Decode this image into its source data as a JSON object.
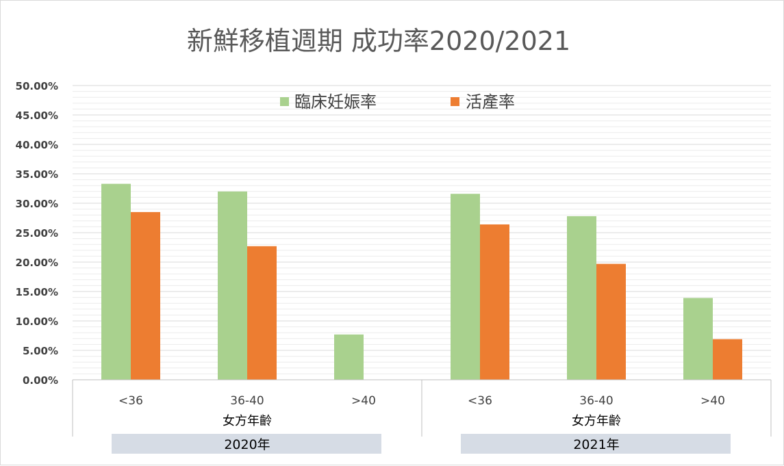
{
  "chart_data": {
    "type": "bar",
    "title": "新鮮移植週期 成功率2020/2021",
    "year_groups": [
      {
        "label": "2020年",
        "axis_label": "女方年齡",
        "categories": [
          "<36",
          "36-40",
          ">40"
        ]
      },
      {
        "label": "2021年",
        "axis_label": "女方年齡",
        "categories": [
          "<36",
          "36-40",
          ">40"
        ]
      }
    ],
    "series": [
      {
        "name": "臨床妊娠率",
        "color": "#a9d18e",
        "values": [
          33.3,
          32.0,
          7.7,
          31.6,
          27.8,
          13.9
        ]
      },
      {
        "name": "活產率",
        "color": "#ed7d31",
        "values": [
          28.5,
          22.7,
          null,
          26.4,
          19.7,
          6.9
        ]
      }
    ],
    "ylim": [
      0,
      50
    ],
    "yticks": [
      "0.00%",
      "5.00%",
      "10.00%",
      "15.00%",
      "20.00%",
      "25.00%",
      "30.00%",
      "35.00%",
      "40.00%",
      "45.00%",
      "50.00%"
    ],
    "grid": true,
    "legend_position": "top"
  }
}
